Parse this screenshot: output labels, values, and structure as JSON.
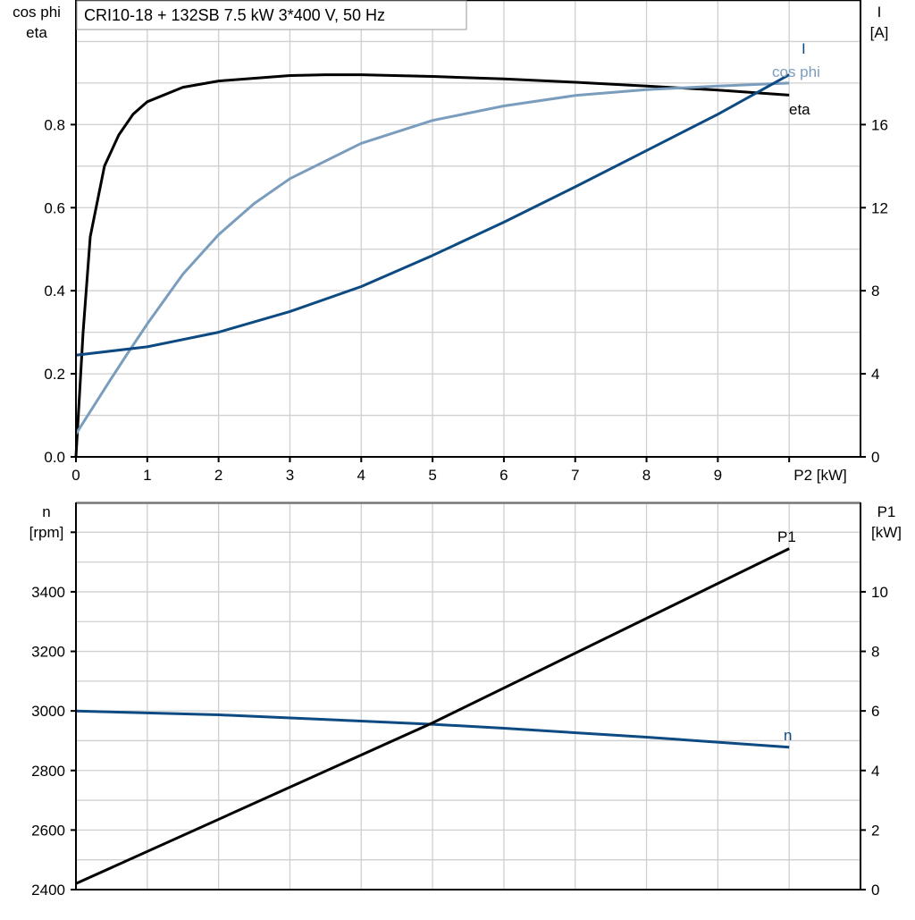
{
  "title": "CRI10-18 + 132SB   7.5 kW   3*400 V, 50 Hz",
  "colors": {
    "eta": "#000000",
    "cos_phi": "#7a9dbd",
    "I": "#0d4a82",
    "P1": "#000000",
    "n": "#0d4a82"
  },
  "chart_data": [
    {
      "type": "line",
      "xlabel": "P2 [kW]",
      "ylabel_left": [
        "cos phi",
        "eta"
      ],
      "ylabel_right": [
        "I",
        "[A]"
      ],
      "xlim": [
        0,
        11
      ],
      "ylim_left": [
        0,
        1.1
      ],
      "ylim_right": [
        0,
        22
      ],
      "grid": true,
      "x_ticks": [
        "0",
        "1",
        "2",
        "3",
        "4",
        "5",
        "6",
        "7",
        "8",
        "9"
      ],
      "y_left_ticks": [
        "0.0",
        "0.2",
        "0.4",
        "0.6",
        "0.8"
      ],
      "y_right_ticks": [
        "0",
        "4",
        "8",
        "12",
        "16"
      ],
      "series": [
        {
          "name": "eta",
          "axis": "left",
          "color": "#000000",
          "x": [
            0,
            0.1,
            0.2,
            0.4,
            0.6,
            0.8,
            1,
            1.5,
            2,
            3,
            3.5,
            4,
            5,
            6,
            7,
            8,
            9,
            10
          ],
          "y": [
            0.0,
            0.3,
            0.53,
            0.7,
            0.775,
            0.825,
            0.855,
            0.89,
            0.905,
            0.918,
            0.92,
            0.92,
            0.916,
            0.91,
            0.902,
            0.893,
            0.883,
            0.871
          ]
        },
        {
          "name": "cos phi",
          "axis": "left",
          "color": "#7a9dbd",
          "x": [
            0,
            0.5,
            0.75,
            1,
            1.5,
            2,
            2.5,
            3,
            4,
            5,
            6,
            7,
            8,
            9,
            10
          ],
          "y": [
            0.055,
            0.19,
            0.256,
            0.32,
            0.44,
            0.535,
            0.61,
            0.67,
            0.755,
            0.81,
            0.845,
            0.87,
            0.884,
            0.893,
            0.9
          ]
        },
        {
          "name": "I",
          "axis": "right",
          "color": "#0d4a82",
          "x": [
            0,
            1,
            2,
            3,
            4,
            5,
            6,
            7,
            8,
            9,
            10
          ],
          "y": [
            4.9,
            5.3,
            6.0,
            7.0,
            8.2,
            9.7,
            11.3,
            13.0,
            14.75,
            16.5,
            18.4
          ]
        }
      ]
    },
    {
      "type": "line",
      "xlim": [
        0,
        11
      ],
      "ylabel_left": [
        "n",
        "[rpm]"
      ],
      "ylabel_right": [
        "P1",
        "[kW]"
      ],
      "ylim_left": [
        2400,
        3700
      ],
      "ylim_right": [
        0,
        13
      ],
      "grid": true,
      "y_left_ticks": [
        "2400",
        "2600",
        "2800",
        "3000",
        "3200",
        "3400"
      ],
      "y_right_ticks": [
        "0",
        "2",
        "4",
        "6",
        "8",
        "10"
      ],
      "series": [
        {
          "name": "n",
          "axis": "left",
          "color": "#0d4a82",
          "x": [
            0,
            2,
            4,
            5,
            6,
            8,
            10
          ],
          "y": [
            3000,
            2987,
            2966,
            2955,
            2942,
            2912,
            2878
          ]
        },
        {
          "name": "P1",
          "axis": "right",
          "color": "#000000",
          "x": [
            0,
            5,
            10
          ],
          "y": [
            0.2,
            5.6,
            11.45
          ]
        }
      ]
    }
  ]
}
